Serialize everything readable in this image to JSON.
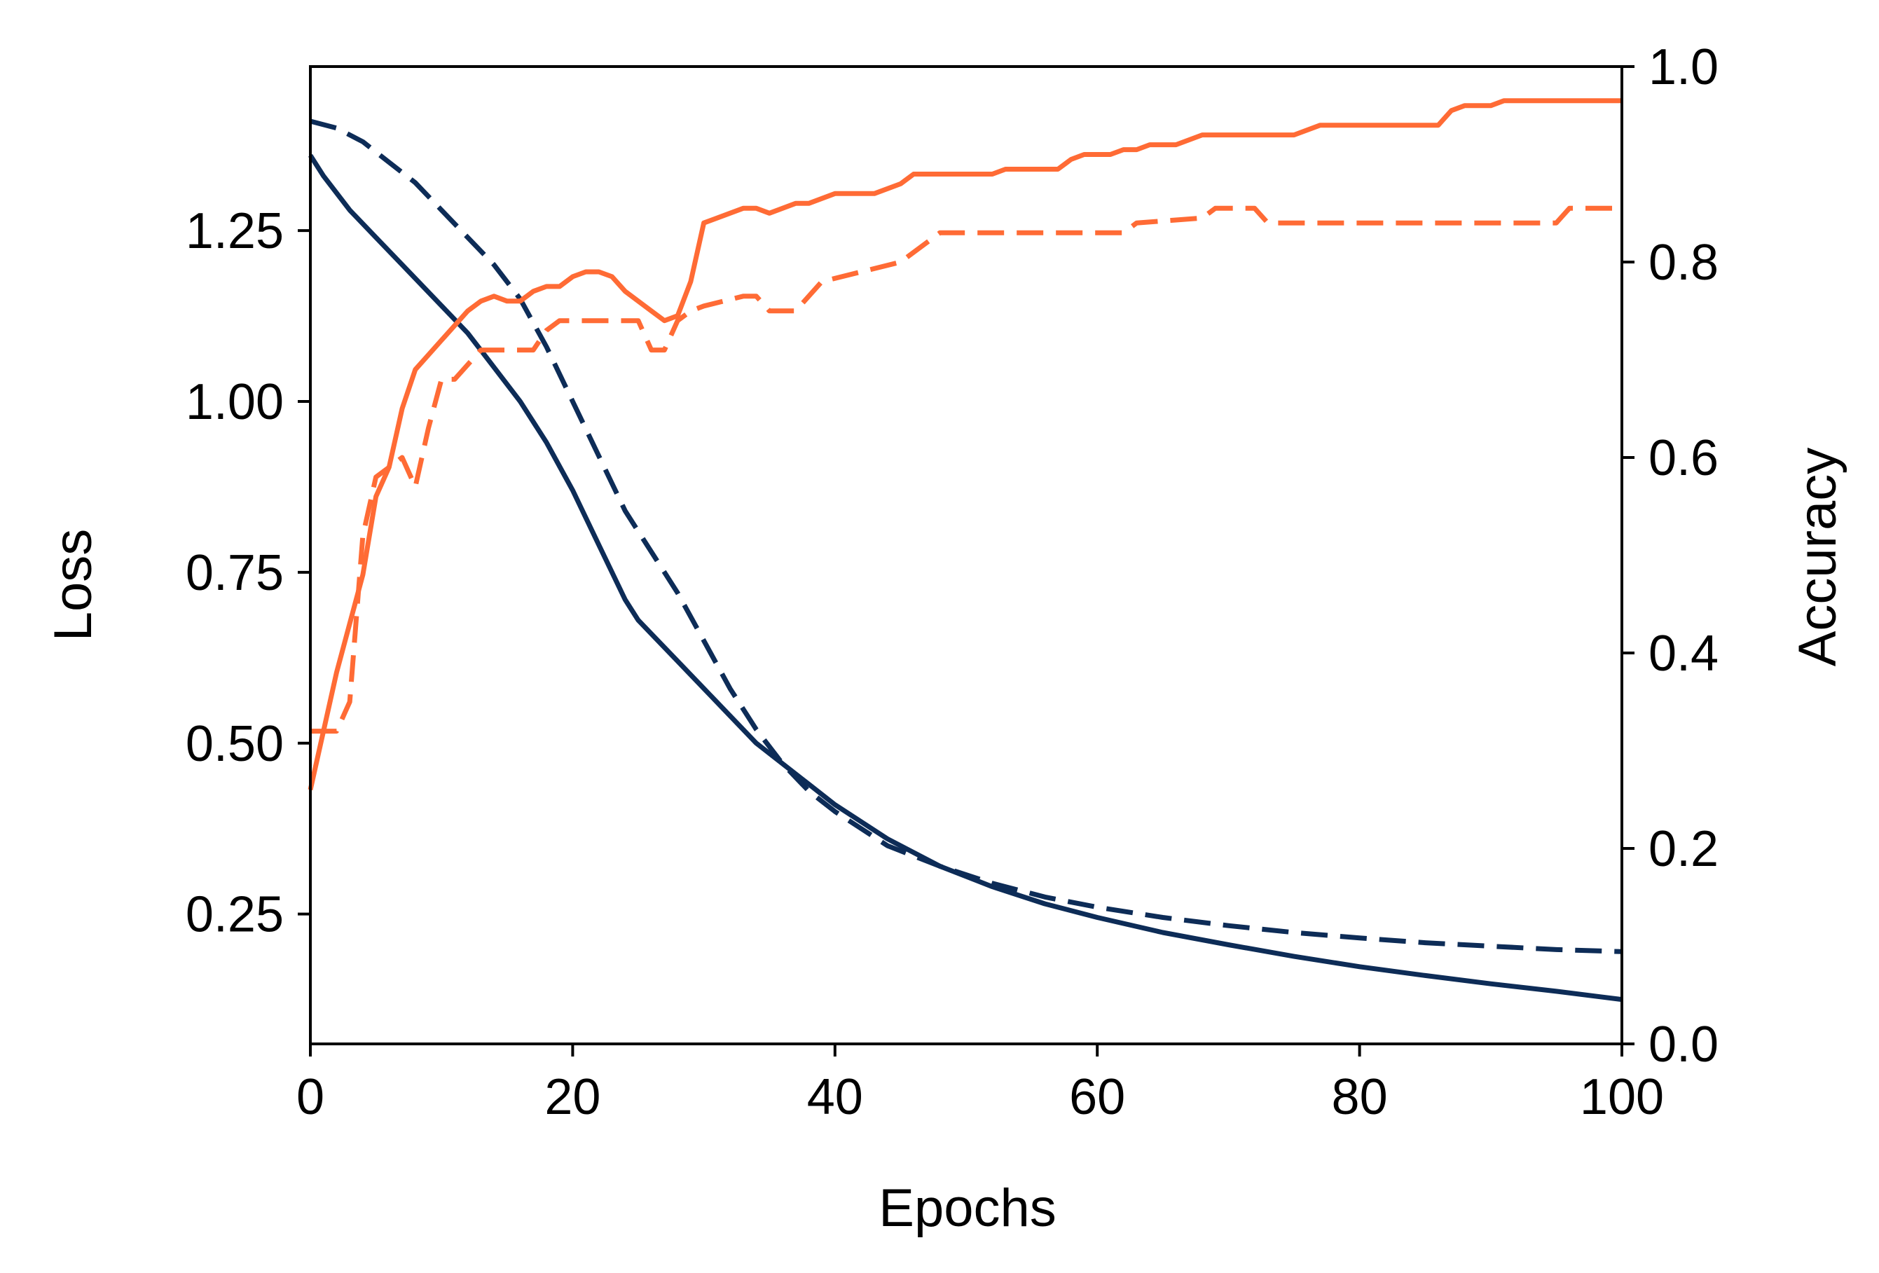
{
  "chart_data": {
    "type": "line",
    "xlabel": "Epochs",
    "ylabel": "Loss",
    "y2label": "Accuracy",
    "xlim": [
      0,
      100
    ],
    "ylim": [
      0.06,
      1.49
    ],
    "y2lim": [
      0.0,
      1.0
    ],
    "xticks": [
      "0",
      "20",
      "40",
      "60",
      "80",
      "100"
    ],
    "xtick_values": [
      0,
      20,
      40,
      60,
      80,
      100
    ],
    "yticks": [
      "0.25",
      "0.50",
      "0.75",
      "1.00",
      "1.25"
    ],
    "ytick_values": [
      0.25,
      0.5,
      0.75,
      1.0,
      1.25
    ],
    "y2ticks": [
      "0.0",
      "0.2",
      "0.4",
      "0.6",
      "0.8",
      "1.0"
    ],
    "y2tick_values": [
      0.0,
      0.2,
      0.4,
      0.6,
      0.8,
      1.0
    ],
    "grid": false,
    "colors": {
      "loss": "#0d2c57",
      "accuracy": "#ff6b35"
    },
    "series": [
      {
        "axis": "left",
        "style": "solid",
        "color": "#0d2c57",
        "x": [
          0,
          1,
          3,
          5,
          8,
          10,
          12,
          14,
          16,
          18,
          20,
          22,
          24,
          25,
          26,
          28,
          30,
          32,
          34,
          36,
          38,
          40,
          44,
          48,
          52,
          56,
          60,
          65,
          70,
          75,
          80,
          85,
          90,
          95,
          100
        ],
        "y": [
          1.36,
          1.33,
          1.28,
          1.24,
          1.18,
          1.14,
          1.1,
          1.05,
          1.0,
          0.94,
          0.87,
          0.79,
          0.71,
          0.68,
          0.66,
          0.62,
          0.58,
          0.54,
          0.5,
          0.47,
          0.44,
          0.41,
          0.36,
          0.32,
          0.29,
          0.265,
          0.245,
          0.223,
          0.205,
          0.188,
          0.173,
          0.16,
          0.148,
          0.137,
          0.125
        ]
      },
      {
        "axis": "left",
        "style": "dashed",
        "color": "#0d2c57",
        "x": [
          0,
          2,
          4,
          6,
          8,
          10,
          12,
          14,
          16,
          18,
          20,
          22,
          24,
          25,
          26,
          28,
          30,
          32,
          34,
          36,
          38,
          40,
          44,
          48,
          52,
          56,
          60,
          65,
          70,
          75,
          80,
          85,
          90,
          95,
          100
        ],
        "y": [
          1.41,
          1.4,
          1.38,
          1.35,
          1.32,
          1.28,
          1.24,
          1.2,
          1.15,
          1.08,
          1.0,
          0.92,
          0.84,
          0.81,
          0.78,
          0.72,
          0.65,
          0.58,
          0.52,
          0.47,
          0.43,
          0.4,
          0.35,
          0.32,
          0.295,
          0.275,
          0.26,
          0.245,
          0.233,
          0.223,
          0.215,
          0.208,
          0.203,
          0.198,
          0.195
        ]
      },
      {
        "axis": "right",
        "style": "solid",
        "color": "#ff6b35",
        "x": [
          0,
          2,
          4,
          5,
          6,
          7,
          8,
          10,
          12,
          13,
          14,
          15,
          16,
          17,
          18,
          19,
          20,
          21,
          22,
          23,
          24,
          26,
          27,
          28,
          29,
          30,
          32,
          33,
          34,
          35,
          36,
          37,
          38,
          39,
          40,
          43,
          45,
          46,
          48,
          52,
          53,
          57,
          58,
          59,
          61,
          62,
          63,
          64,
          66,
          68,
          75,
          77,
          86,
          87,
          88,
          90,
          91,
          100
        ],
        "y": [
          0.26,
          0.38,
          0.48,
          0.56,
          0.59,
          0.65,
          0.69,
          0.72,
          0.75,
          0.76,
          0.765,
          0.76,
          0.76,
          0.77,
          0.775,
          0.775,
          0.785,
          0.79,
          0.79,
          0.785,
          0.77,
          0.75,
          0.74,
          0.745,
          0.78,
          0.84,
          0.85,
          0.855,
          0.855,
          0.85,
          0.855,
          0.86,
          0.86,
          0.865,
          0.87,
          0.87,
          0.88,
          0.89,
          0.89,
          0.89,
          0.895,
          0.895,
          0.905,
          0.91,
          0.91,
          0.915,
          0.915,
          0.92,
          0.92,
          0.93,
          0.93,
          0.94,
          0.94,
          0.955,
          0.96,
          0.96,
          0.965,
          0.965
        ]
      },
      {
        "axis": "right",
        "style": "dashed",
        "color": "#ff6b35",
        "x": [
          0,
          2,
          3,
          4,
          5,
          6,
          7,
          8,
          9,
          10,
          11,
          13,
          17,
          18,
          19,
          25,
          26,
          27,
          28,
          29,
          30,
          33,
          34,
          35,
          36,
          37,
          39,
          42,
          45,
          48,
          58,
          62,
          63,
          68,
          69,
          72,
          73,
          80,
          90,
          95,
          96,
          100
        ],
        "y": [
          0.32,
          0.32,
          0.35,
          0.52,
          0.58,
          0.59,
          0.6,
          0.57,
          0.63,
          0.68,
          0.68,
          0.71,
          0.71,
          0.73,
          0.74,
          0.74,
          0.71,
          0.71,
          0.74,
          0.75,
          0.755,
          0.765,
          0.765,
          0.75,
          0.75,
          0.75,
          0.78,
          0.79,
          0.8,
          0.83,
          0.83,
          0.83,
          0.84,
          0.845,
          0.855,
          0.855,
          0.84,
          0.84,
          0.84,
          0.84,
          0.855,
          0.855
        ]
      }
    ]
  }
}
